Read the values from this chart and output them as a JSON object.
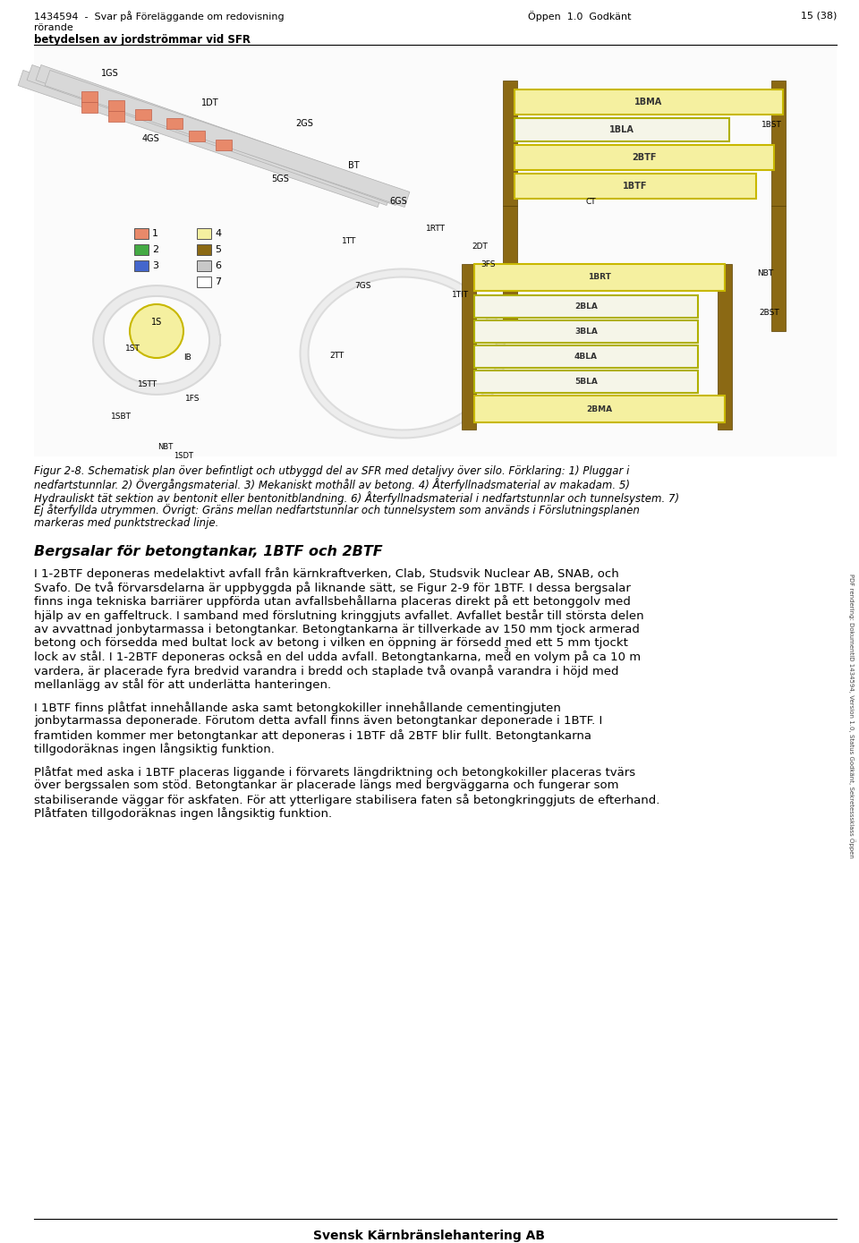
{
  "header_left1": "1434594  -  Svar på Föreläggande om redovisning",
  "header_center": "Öppen  1.0  Godkänt",
  "header_right": "15 (38)",
  "header_left2": "rörande",
  "header_left3": "betydelsen av jordströmmar vid SFR",
  "figure_caption_lines": [
    "Figur 2-8. Schematisk plan över befintligt och utbyggd del av SFR med detaljvy över silo. Förklaring: 1) Pluggar i",
    "nedfartstunnlar. 2) Övergångsmaterial. 3) Mekaniskt mothåll av betong. 4) Återfyllnadsmaterial av makadam. 5)",
    "Hydrauliskt tät sektion av bentonit eller bentonitblandning. 6) Återfyllnadsmaterial i nedfartstunnlar och tunnelsystem. 7)",
    "Ej återfyllda utrymmen. Övrigt: Gräns mellan nedfartstunnlar och tunnelsystem som används i Förslutningsplanen",
    "markeras med punktstreckad linje."
  ],
  "section_title": "Bergsalar för betongtankar, 1BTF och 2BTF",
  "paragraph1_lines": [
    "I 1-2BTF deponeras medelaktivt avfall från kärnkraftverken, Clab, Studsvik Nuclear AB, SNAB, och",
    "Svafo. De två förvarsdelarna är uppbyggda på liknande sätt, se Figur 2-9 för 1BTF. I dessa bergsalar",
    "finns inga tekniska barriärer uppförda utan avfallsbehållarna placeras direkt på ett betonggolv med",
    "hjälp av en gaffeltruck. I samband med förslutning kringgjuts avfallet. Avfallet består till största delen",
    "av avvattnad jonbytarmassa i betongtankar. Betongtankarna är tillverkade av 150 mm tjock armerad",
    "betong och försedda med bultat lock av betong i vilken en öppning är försedd med ett 5 mm tjockt",
    "lock av stål. I 1-2BTF deponeras också en del udda avfall. Betongtankarna, med en volym på ca 10 m",
    "vardera, är placerade fyra bredvid varandra i bredd och staplade två ovanpå varandra i höjd med",
    "mellanlägg av stål för att underlätta hanteringen."
  ],
  "paragraph2_lines": [
    "I 1BTF finns plåtfat innehållande aska samt betongkokiller innehållande cementingjuten",
    "jonbytarmassa deponerade. Förutom detta avfall finns även betongtankar deponerade i 1BTF. I",
    "framtiden kommer mer betongtankar att deponeras i 1BTF då 2BTF blir fullt. Betongtankarna",
    "tillgodoräknas ingen långsiktig funktion."
  ],
  "paragraph3_lines": [
    "Plåtfat med aska i 1BTF placeras liggande i förvarets längdriktning och betongkokiller placeras tvärs",
    "över bergssalen som stöd. Betongtankar är placerade längs med bergväggarna och fungerar som",
    "stabiliserande väggar för askfaten. För att ytterligare stabilisera faten så betongkringgjuts de efterhand.",
    "Plåtfaten tillgodoräknas ingen långsiktig funktion."
  ],
  "footer": "Svensk Kärnbränslehantering AB",
  "sidebar_text": "PDF rendering: DokumentID 1434594, Version 1.0, Status Godkänt, Sekretesssklass Öppen",
  "bg_color": "#ffffff",
  "text_color": "#000000"
}
